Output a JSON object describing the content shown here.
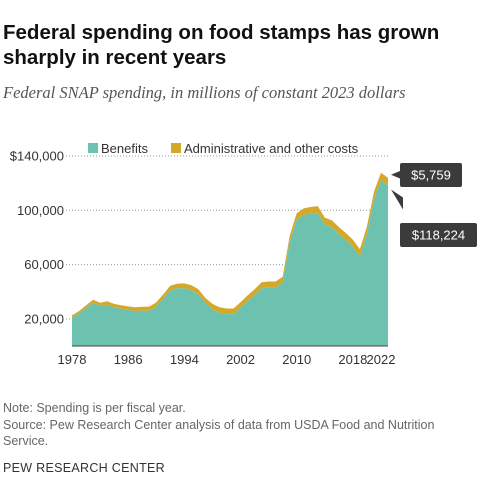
{
  "header": {
    "title": "Federal spending on food stamps has grown sharply in recent years",
    "subtitle": "Federal SNAP spending, in millions of constant 2023 dollars"
  },
  "chart_data": {
    "type": "area",
    "stacked": true,
    "title": "Federal spending on food stamps has grown sharply in recent years",
    "subtitle": "Federal SNAP spending, in millions of constant 2023 dollars",
    "xlabel": "",
    "ylabel": "",
    "xlim": [
      1978,
      2023
    ],
    "ylim": [
      0,
      140000
    ],
    "x_ticks": [
      1978,
      1986,
      1994,
      2002,
      2010,
      2018,
      2022
    ],
    "x_tick_labels": [
      "1978",
      "1986",
      "1994",
      "2002",
      "2010",
      "2018",
      "2022"
    ],
    "y_ticks": [
      20000,
      60000,
      100000,
      140000
    ],
    "y_tick_labels": [
      "20,000",
      "60,000",
      "100,000",
      "$140,000"
    ],
    "grid": "horizontal-dotted",
    "legend_position": "top",
    "x": [
      1978,
      1979,
      1980,
      1981,
      1982,
      1983,
      1984,
      1985,
      1986,
      1987,
      1988,
      1989,
      1990,
      1991,
      1992,
      1993,
      1994,
      1995,
      1996,
      1997,
      1998,
      1999,
      2000,
      2001,
      2002,
      2003,
      2004,
      2005,
      2006,
      2007,
      2008,
      2009,
      2010,
      2011,
      2012,
      2013,
      2014,
      2015,
      2016,
      2017,
      2018,
      2019,
      2020,
      2021,
      2022,
      2023
    ],
    "series": [
      {
        "name": "Benefits",
        "color": "#6cc2ae",
        "values": [
          21000,
          24000,
          28000,
          32000,
          29500,
          30500,
          28500,
          27500,
          26500,
          25800,
          26000,
          26000,
          29000,
          35000,
          41000,
          42500,
          42500,
          41000,
          38000,
          31500,
          27000,
          24500,
          23500,
          23500,
          28000,
          33000,
          37500,
          42500,
          43000,
          43000,
          46500,
          76500,
          93000,
          96500,
          97500,
          98000,
          89500,
          87500,
          82500,
          78000,
          73000,
          66000,
          82500,
          108000,
          122000,
          118224
        ]
      },
      {
        "name": "Administrative and other costs",
        "color": "#d4a82a",
        "values": [
          1600,
          1700,
          1900,
          2100,
          2300,
          2400,
          2500,
          2600,
          2700,
          2800,
          2900,
          3000,
          3100,
          3200,
          3400,
          3500,
          3600,
          3700,
          3800,
          3900,
          4000,
          4000,
          4100,
          4100,
          4200,
          4300,
          4300,
          4400,
          4500,
          4500,
          4600,
          4700,
          4800,
          4900,
          5000,
          5100,
          5100,
          5200,
          5200,
          5300,
          5300,
          5400,
          5500,
          5600,
          5700,
          5759
        ]
      }
    ],
    "annotations": [
      {
        "label": "$5,759",
        "x": 2023,
        "series": "Administrative and other costs"
      },
      {
        "label": "$118,224",
        "x": 2023,
        "series": "Benefits"
      }
    ]
  },
  "footer": {
    "note": "Note: Spending is per fiscal year.",
    "source": "Source: Pew Research Center analysis of data from USDA Food and Nutrition Service.",
    "brand": "PEW RESEARCH CENTER"
  }
}
